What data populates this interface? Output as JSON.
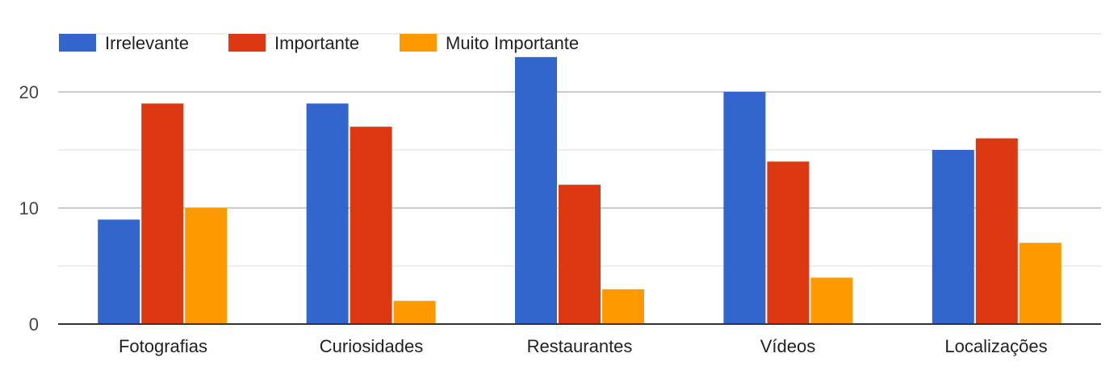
{
  "chart_data": {
    "type": "bar",
    "categories": [
      "Fotografias",
      "Curiosidades",
      "Restaurantes",
      "Vídeos",
      "Localizações"
    ],
    "series": [
      {
        "name": "Irrelevante",
        "color": "#3366cc",
        "values": [
          9,
          19,
          23,
          20,
          15
        ]
      },
      {
        "name": "Importante",
        "color": "#dc3912",
        "values": [
          19,
          17,
          12,
          14,
          16
        ]
      },
      {
        "name": "Muito Importante",
        "color": "#ff9900",
        "values": [
          10,
          2,
          3,
          4,
          7
        ]
      }
    ],
    "y_ticks": [
      "0",
      "10",
      "20"
    ],
    "ylim": [
      0,
      25
    ],
    "legend_position": "top-left",
    "grid": true
  }
}
